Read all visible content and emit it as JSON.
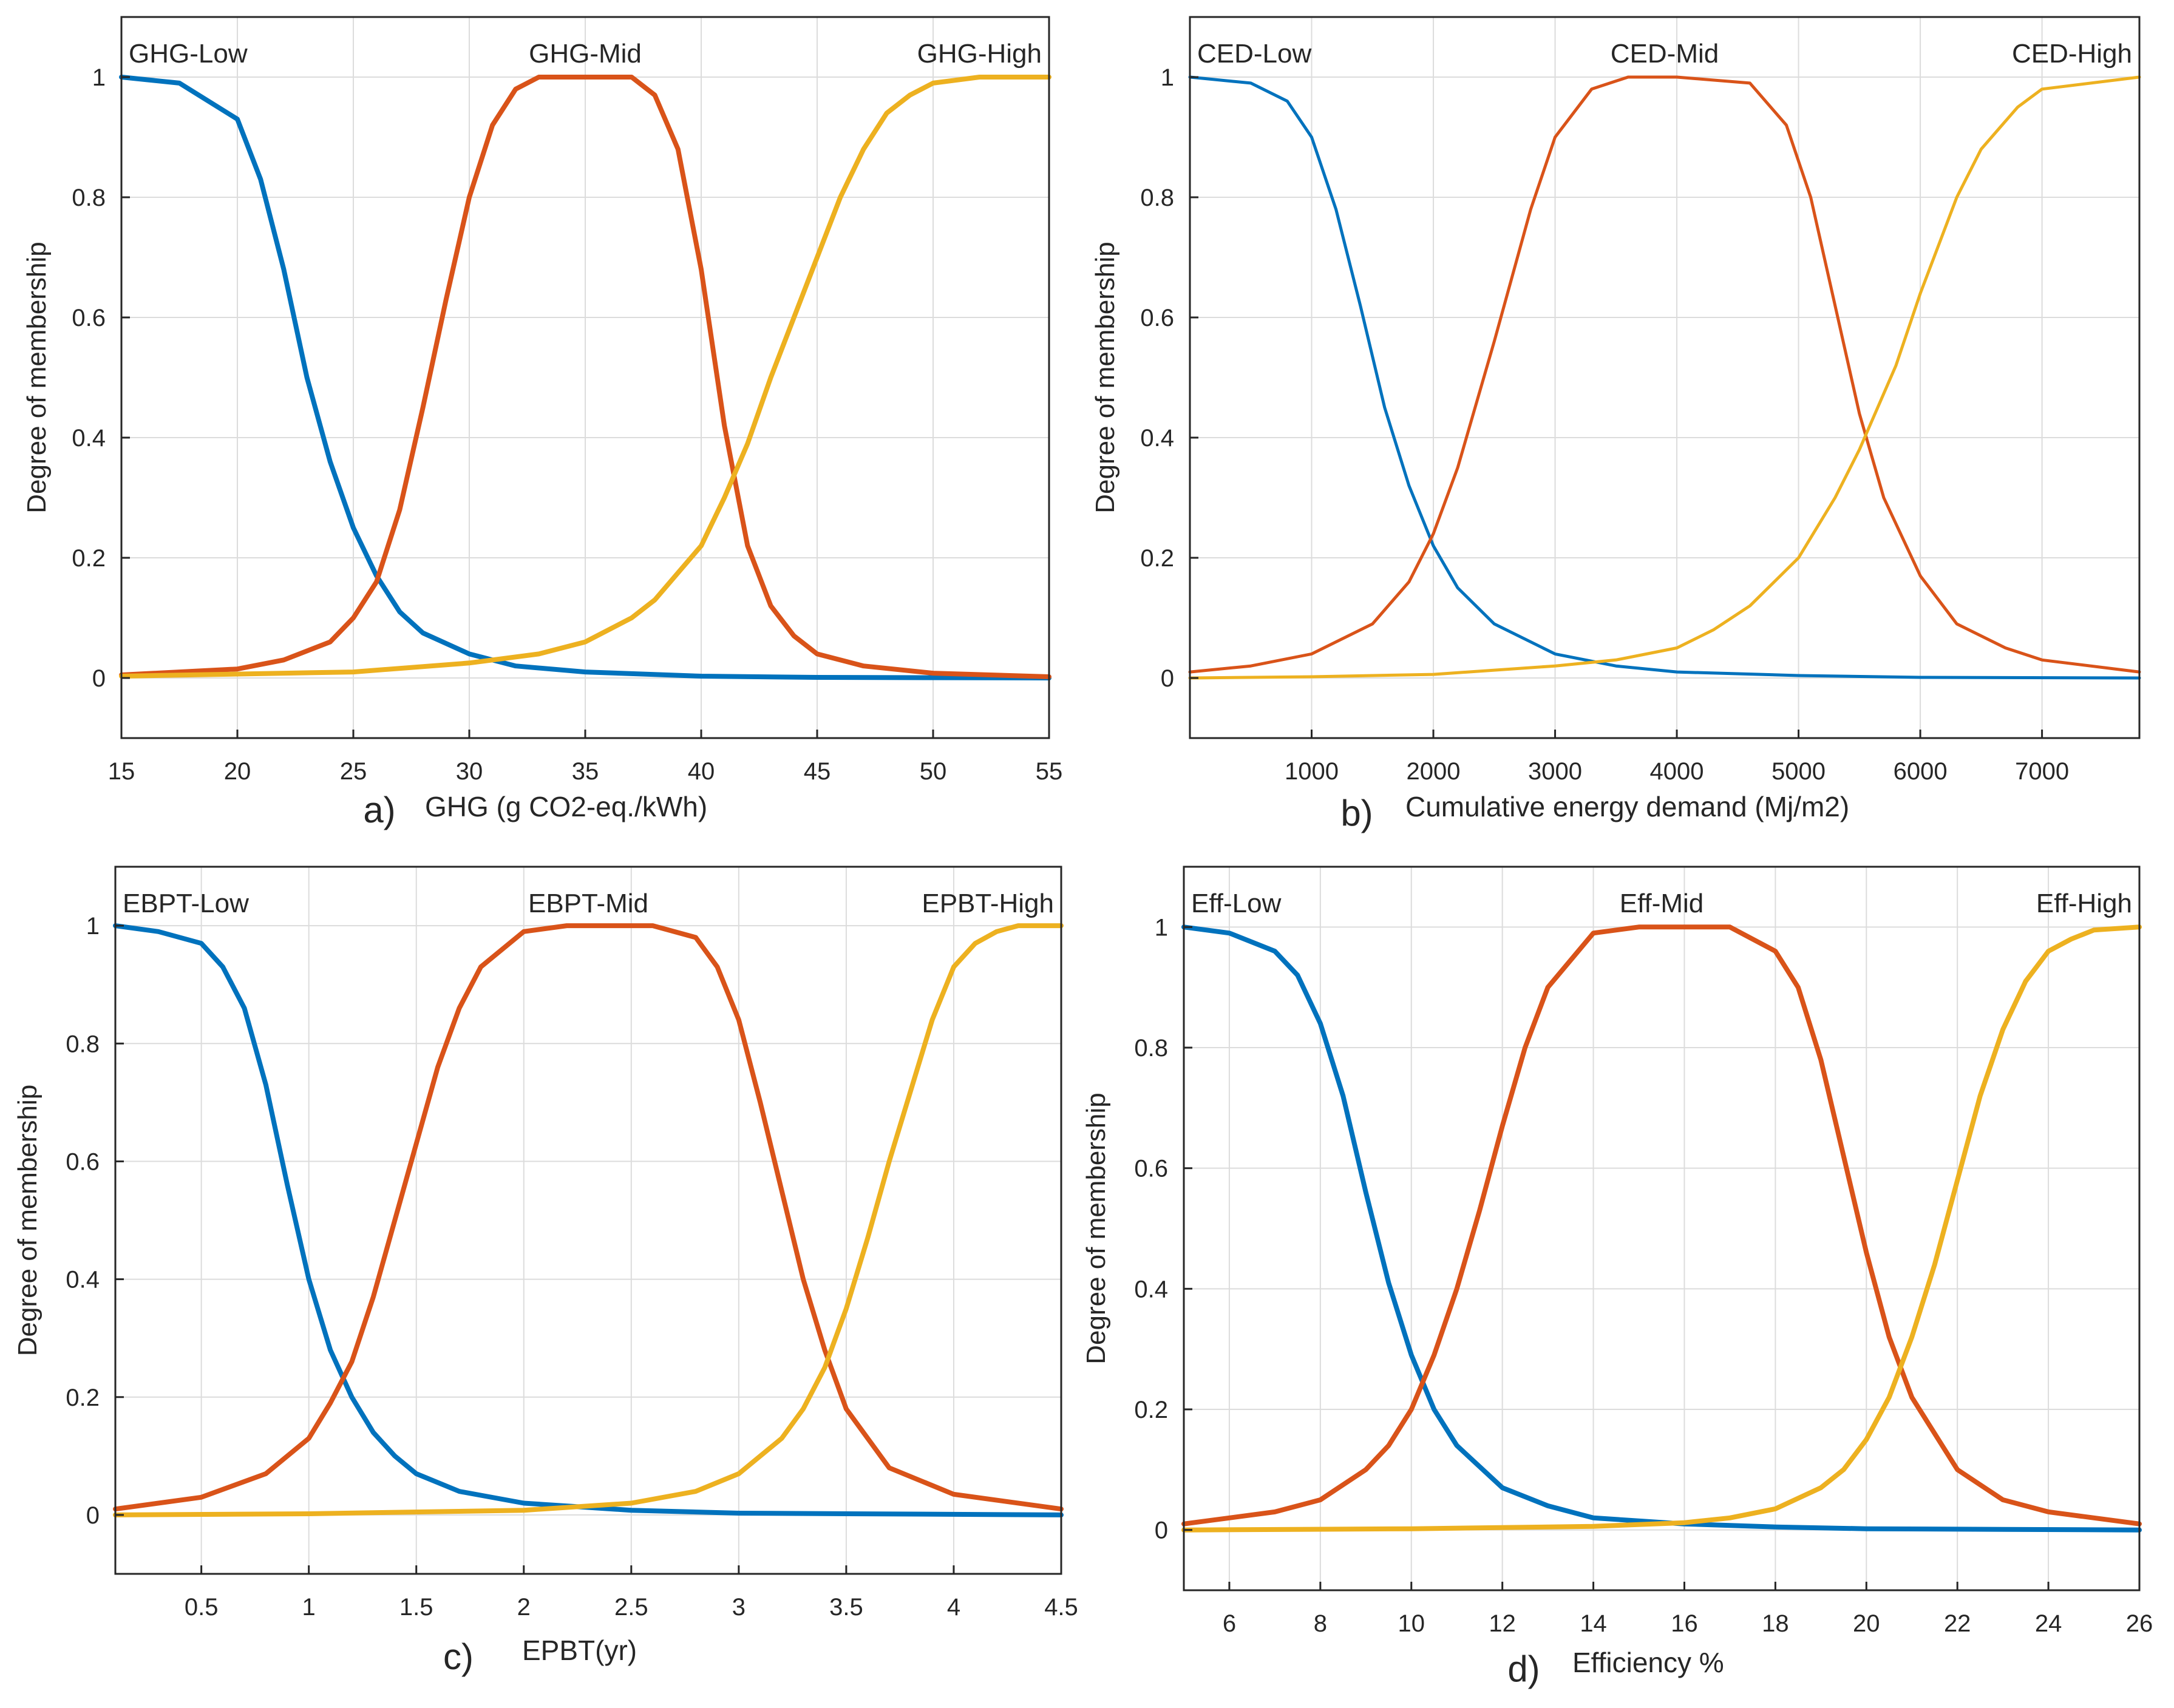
{
  "chart_data": [
    {
      "type": "line",
      "panel_label": "a)",
      "xlabel": "GHG (g CO2-eq./kWh)",
      "ylabel": "Degree of membership",
      "xlim": [
        15,
        55
      ],
      "ylim": [
        -0.1,
        1.1
      ],
      "xticks": [
        15,
        20,
        25,
        30,
        35,
        40,
        45,
        50,
        55
      ],
      "yticks": [
        0,
        0.2,
        0.4,
        0.6,
        0.8,
        1
      ],
      "grid": true,
      "series": [
        {
          "name": "GHG-Low",
          "color": "#0072BD",
          "x": [
            15,
            17.5,
            20,
            21,
            22,
            23,
            24,
            25,
            26,
            27,
            28,
            30,
            32,
            35,
            40,
            45,
            55
          ],
          "y": [
            1,
            0.99,
            0.93,
            0.83,
            0.68,
            0.5,
            0.36,
            0.25,
            0.17,
            0.11,
            0.075,
            0.04,
            0.02,
            0.01,
            0.003,
            0.001,
            0
          ]
        },
        {
          "name": "GHG-Mid",
          "color": "#D95319",
          "x": [
            15,
            20,
            22,
            24,
            25,
            26,
            27,
            28,
            29,
            30,
            31,
            32,
            33,
            35,
            37,
            38,
            39,
            40,
            41,
            42,
            43,
            44,
            45,
            47,
            50,
            55
          ],
          "y": [
            0.005,
            0.015,
            0.03,
            0.06,
            0.1,
            0.16,
            0.28,
            0.45,
            0.63,
            0.8,
            0.92,
            0.98,
            1,
            1,
            1,
            0.97,
            0.88,
            0.68,
            0.42,
            0.22,
            0.12,
            0.07,
            0.04,
            0.02,
            0.008,
            0.002
          ]
        },
        {
          "name": "GHG-High",
          "color": "#EDB120",
          "x": [
            15,
            25,
            30,
            33,
            35,
            37,
            38,
            40,
            41,
            42,
            43,
            44,
            45,
            46,
            47,
            48,
            49,
            50,
            52,
            55
          ],
          "y": [
            0.003,
            0.01,
            0.025,
            0.04,
            0.06,
            0.1,
            0.13,
            0.22,
            0.3,
            0.39,
            0.5,
            0.6,
            0.7,
            0.8,
            0.88,
            0.94,
            0.97,
            0.99,
            1,
            1
          ]
        }
      ]
    },
    {
      "type": "line",
      "panel_label": "b)",
      "xlabel": "Cumulative energy demand (Mj/m2)",
      "ylabel": "Degree of membership",
      "xlim": [
        0,
        7800
      ],
      "ylim": [
        -0.1,
        1.1
      ],
      "xticks": [
        1000,
        2000,
        3000,
        4000,
        5000,
        6000,
        7000
      ],
      "yticks": [
        0,
        0.2,
        0.4,
        0.6,
        0.8,
        1
      ],
      "grid": true,
      "series": [
        {
          "name": "CED-Low",
          "color": "#0072BD",
          "x": [
            0,
            500,
            800,
            1000,
            1200,
            1400,
            1600,
            1800,
            2000,
            2200,
            2500,
            3000,
            3500,
            4000,
            5000,
            6000,
            7800
          ],
          "y": [
            1,
            0.99,
            0.96,
            0.9,
            0.78,
            0.62,
            0.45,
            0.32,
            0.22,
            0.15,
            0.09,
            0.04,
            0.02,
            0.01,
            0.004,
            0.001,
            0
          ]
        },
        {
          "name": "CED-Mid",
          "color": "#D95319",
          "x": [
            0,
            500,
            1000,
            1500,
            1800,
            2000,
            2200,
            2500,
            2800,
            3000,
            3300,
            3600,
            4000,
            4600,
            4900,
            5100,
            5300,
            5500,
            5700,
            6000,
            6300,
            6700,
            7000,
            7800
          ],
          "y": [
            0.01,
            0.02,
            0.04,
            0.09,
            0.16,
            0.24,
            0.35,
            0.56,
            0.78,
            0.9,
            0.98,
            1,
            1,
            0.99,
            0.92,
            0.8,
            0.62,
            0.44,
            0.3,
            0.17,
            0.09,
            0.05,
            0.03,
            0.01
          ]
        },
        {
          "name": "CED-High",
          "color": "#EDB120",
          "x": [
            0,
            1000,
            2000,
            3000,
            3500,
            4000,
            4300,
            4600,
            5000,
            5300,
            5500,
            5800,
            6000,
            6300,
            6500,
            6800,
            7000,
            7800
          ],
          "y": [
            0,
            0.002,
            0.006,
            0.02,
            0.03,
            0.05,
            0.08,
            0.12,
            0.2,
            0.3,
            0.38,
            0.52,
            0.64,
            0.8,
            0.88,
            0.95,
            0.98,
            1
          ]
        }
      ]
    },
    {
      "type": "line",
      "panel_label": "c)",
      "xlabel": "EPBT(yr)",
      "ylabel": "Degree of membership",
      "xlim": [
        0.1,
        4.5
      ],
      "ylim": [
        -0.1,
        1.1
      ],
      "xticks": [
        0.5,
        1,
        1.5,
        2,
        2.5,
        3,
        3.5,
        4,
        4.5
      ],
      "yticks": [
        0,
        0.2,
        0.4,
        0.6,
        0.8,
        1
      ],
      "grid": true,
      "series": [
        {
          "name": "EBPT-Low",
          "color": "#0072BD",
          "x": [
            0.1,
            0.3,
            0.5,
            0.6,
            0.7,
            0.8,
            0.9,
            1.0,
            1.1,
            1.2,
            1.3,
            1.4,
            1.5,
            1.7,
            2.0,
            2.5,
            3.0,
            4.5
          ],
          "y": [
            1,
            0.99,
            0.97,
            0.93,
            0.86,
            0.73,
            0.56,
            0.4,
            0.28,
            0.2,
            0.14,
            0.1,
            0.07,
            0.04,
            0.02,
            0.008,
            0.003,
            0
          ]
        },
        {
          "name": "EBPT-Mid",
          "color": "#D95319",
          "x": [
            0.1,
            0.5,
            0.8,
            1.0,
            1.1,
            1.2,
            1.3,
            1.4,
            1.5,
            1.6,
            1.7,
            1.8,
            2.0,
            2.2,
            2.6,
            2.8,
            2.9,
            3.0,
            3.1,
            3.2,
            3.3,
            3.4,
            3.5,
            3.7,
            4.0,
            4.5
          ],
          "y": [
            0.01,
            0.03,
            0.07,
            0.13,
            0.19,
            0.26,
            0.37,
            0.5,
            0.63,
            0.76,
            0.86,
            0.93,
            0.99,
            1,
            1,
            0.98,
            0.93,
            0.84,
            0.7,
            0.55,
            0.4,
            0.28,
            0.18,
            0.08,
            0.035,
            0.01
          ]
        },
        {
          "name": "EPBT-High",
          "color": "#EDB120",
          "x": [
            0.1,
            1.0,
            2.0,
            2.5,
            2.8,
            3.0,
            3.2,
            3.3,
            3.4,
            3.5,
            3.6,
            3.7,
            3.8,
            3.9,
            4.0,
            4.1,
            4.2,
            4.3,
            4.5
          ],
          "y": [
            0,
            0.002,
            0.008,
            0.02,
            0.04,
            0.07,
            0.13,
            0.18,
            0.25,
            0.35,
            0.47,
            0.6,
            0.72,
            0.84,
            0.93,
            0.97,
            0.99,
            1,
            1
          ]
        }
      ]
    },
    {
      "type": "line",
      "panel_label": "d)",
      "xlabel": "Efficiency %",
      "ylabel": "Degree of membership",
      "xlim": [
        5,
        26
      ],
      "ylim": [
        -0.1,
        1.1
      ],
      "xticks": [
        6,
        8,
        10,
        12,
        14,
        16,
        18,
        20,
        22,
        24,
        26
      ],
      "yticks": [
        0,
        0.2,
        0.4,
        0.6,
        0.8,
        1
      ],
      "grid": true,
      "series": [
        {
          "name": "Eff-Low",
          "color": "#0072BD",
          "x": [
            5,
            6,
            7,
            7.5,
            8,
            8.5,
            9,
            9.5,
            10,
            10.5,
            11,
            12,
            13,
            14,
            16,
            18,
            20,
            26
          ],
          "y": [
            1,
            0.99,
            0.96,
            0.92,
            0.84,
            0.72,
            0.56,
            0.41,
            0.29,
            0.2,
            0.14,
            0.07,
            0.04,
            0.02,
            0.01,
            0.005,
            0.002,
            0
          ]
        },
        {
          "name": "Eff-Mid",
          "color": "#D95319",
          "x": [
            5,
            6,
            7,
            8,
            9,
            9.5,
            10,
            10.5,
            11,
            11.5,
            12,
            12.5,
            13,
            14,
            15,
            17,
            18,
            18.5,
            19,
            19.5,
            20,
            20.5,
            21,
            22,
            23,
            24,
            26
          ],
          "y": [
            0.01,
            0.02,
            0.03,
            0.05,
            0.1,
            0.14,
            0.2,
            0.29,
            0.4,
            0.53,
            0.67,
            0.8,
            0.9,
            0.99,
            1,
            1,
            0.96,
            0.9,
            0.78,
            0.62,
            0.46,
            0.32,
            0.22,
            0.1,
            0.05,
            0.03,
            0.01
          ]
        },
        {
          "name": "Eff-High",
          "color": "#EDB120",
          "x": [
            5,
            10,
            14,
            16,
            17,
            18,
            19,
            19.5,
            20,
            20.5,
            21,
            21.5,
            22,
            22.5,
            23,
            23.5,
            24,
            24.5,
            25,
            26
          ],
          "y": [
            0,
            0.002,
            0.006,
            0.012,
            0.02,
            0.035,
            0.07,
            0.1,
            0.15,
            0.22,
            0.32,
            0.44,
            0.58,
            0.72,
            0.83,
            0.91,
            0.96,
            0.98,
            0.995,
            1
          ]
        }
      ]
    }
  ]
}
